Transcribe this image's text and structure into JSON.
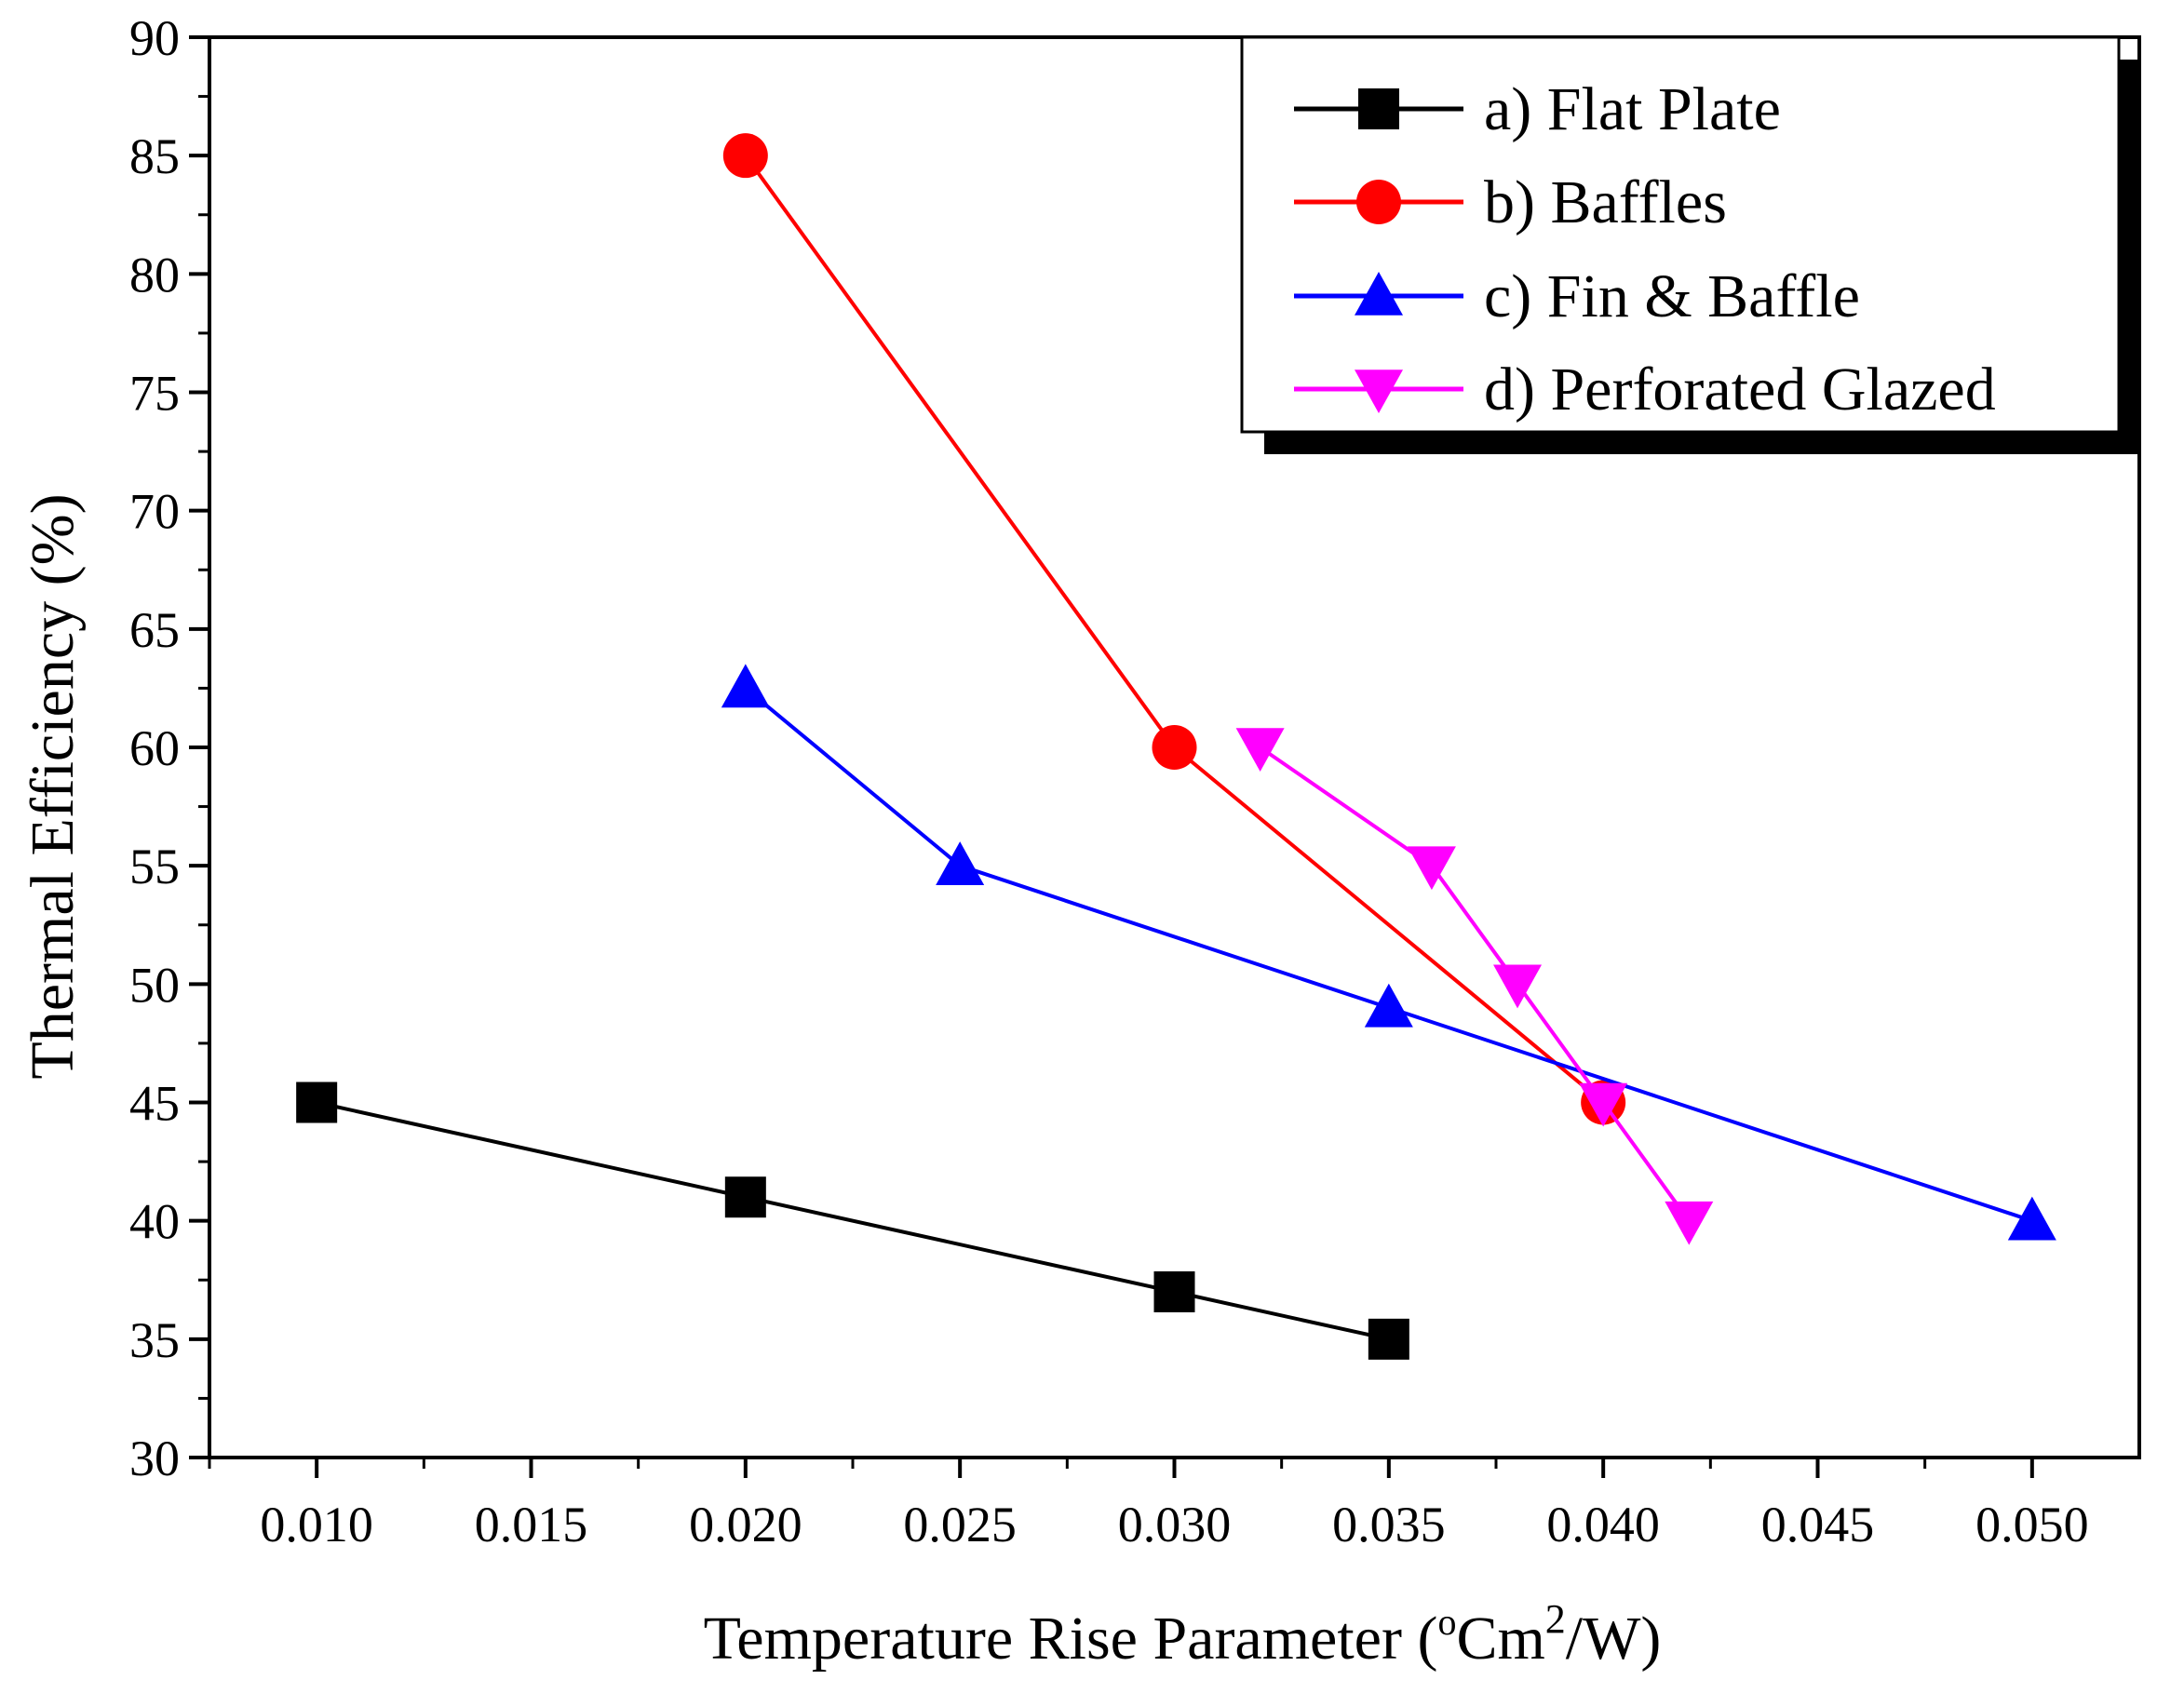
{
  "chart_data": {
    "type": "line",
    "title": "",
    "xlabel": {
      "main": "Temperature Rise Parameter (",
      "degree": "o",
      "unit": "Cm",
      "exponent": "2",
      "tail": "/W)"
    },
    "ylabel": "Thermal Efficiency (%)",
    "xlim": [
      0.0075,
      0.0525
    ],
    "ylim": [
      30,
      90
    ],
    "xticks": [
      "0.010",
      "0.015",
      "0.020",
      "0.025",
      "0.030",
      "0.035",
      "0.040",
      "0.045",
      "0.050"
    ],
    "yticks": [
      "30",
      "35",
      "40",
      "45",
      "50",
      "55",
      "60",
      "65",
      "70",
      "75",
      "80",
      "85",
      "90"
    ],
    "legend_position": "top-right",
    "series": [
      {
        "name": "a) Flat Plate",
        "color": "#000000",
        "marker": "square",
        "x": [
          0.01,
          0.02,
          0.03,
          0.035
        ],
        "y": [
          45,
          41,
          37,
          35
        ]
      },
      {
        "name": "b) Baffles",
        "color": "#ff0000",
        "marker": "circle",
        "x": [
          0.02,
          0.03,
          0.04
        ],
        "y": [
          85,
          60,
          45
        ]
      },
      {
        "name": "c) Fin & Baffle",
        "color": "#0000ff",
        "marker": "triangle-up",
        "x": [
          0.02,
          0.025,
          0.035,
          0.05
        ],
        "y": [
          62.5,
          55,
          49,
          40
        ]
      },
      {
        "name": "d) Perforated Glazed",
        "color": "#ff00ff",
        "marker": "triangle-down",
        "x": [
          0.032,
          0.036,
          0.038,
          0.04,
          0.042
        ],
        "y": [
          60,
          55,
          50,
          45,
          40
        ]
      }
    ]
  }
}
